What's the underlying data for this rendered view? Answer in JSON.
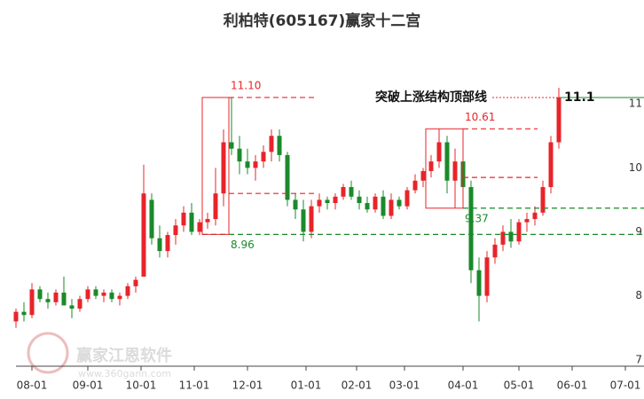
{
  "chart_data": {
    "type": "candlestick",
    "title": "利柏特(605167)赢家十二宫",
    "watermark": [
      "赢家江恩软件",
      "www.360gann.com"
    ],
    "up_color": "#e8242a",
    "down_color": "#1a8a2a",
    "xlim": [
      0,
      236
    ],
    "ylim": [
      6.9,
      12.0
    ],
    "xticks": [
      {
        "value": 6,
        "label": "08-01"
      },
      {
        "value": 27,
        "label": "09-01"
      },
      {
        "value": 47,
        "label": "10-01"
      },
      {
        "value": 67,
        "label": "11-01"
      },
      {
        "value": 87,
        "label": "12-01"
      },
      {
        "value": 109,
        "label": "01-01"
      },
      {
        "value": 128,
        "label": "02-01"
      },
      {
        "value": 146,
        "label": "03-01"
      },
      {
        "value": 168,
        "label": "04-01"
      },
      {
        "value": 189,
        "label": "05-01"
      },
      {
        "value": 209,
        "label": "06-01"
      },
      {
        "value": 229,
        "label": "07-01"
      }
    ],
    "yticks": [
      7,
      8,
      9,
      10,
      11
    ],
    "x": [
      0,
      3,
      6,
      9,
      12,
      15,
      18,
      21,
      24,
      27,
      30,
      33,
      36,
      39,
      42,
      45,
      48,
      51,
      54,
      57,
      60,
      63,
      66,
      69,
      72,
      75,
      78,
      81,
      84,
      87,
      90,
      93,
      96,
      99,
      102,
      105,
      108,
      111,
      114,
      117,
      120,
      123,
      126,
      129,
      132,
      135,
      138,
      141,
      144,
      147,
      150,
      153,
      156,
      159,
      162,
      165,
      168,
      171,
      174,
      177,
      180,
      183,
      186,
      189,
      192,
      195,
      198,
      201,
      204
    ],
    "open": [
      7.6,
      7.75,
      7.7,
      8.1,
      7.95,
      7.9,
      8.05,
      7.85,
      7.8,
      7.95,
      8.1,
      8.0,
      8.05,
      7.95,
      8.0,
      8.15,
      8.3,
      9.5,
      8.9,
      8.7,
      8.95,
      9.1,
      9.3,
      9.0,
      9.15,
      9.2,
      9.6,
      10.4,
      10.3,
      10.1,
      10.0,
      10.1,
      10.25,
      10.5,
      10.2,
      9.5,
      9.35,
      9.0,
      9.4,
      9.5,
      9.45,
      9.55,
      9.7,
      9.55,
      9.45,
      9.35,
      9.55,
      9.25,
      9.5,
      9.4,
      9.65,
      9.8,
      9.95,
      10.1,
      10.4,
      9.8,
      10.1,
      9.7,
      8.4,
      8.0,
      8.6,
      8.8,
      9.0,
      8.85,
      9.15,
      9.2,
      9.3,
      9.7,
      10.4
    ],
    "high": [
      7.8,
      7.9,
      8.2,
      8.15,
      8.05,
      8.1,
      8.3,
      7.95,
      8.0,
      8.15,
      8.15,
      8.1,
      8.1,
      8.05,
      8.2,
      8.3,
      10.05,
      9.6,
      9.1,
      9.0,
      9.2,
      9.4,
      9.45,
      9.2,
      9.3,
      10.0,
      10.6,
      11.1,
      10.5,
      10.3,
      10.2,
      10.35,
      10.6,
      10.6,
      10.25,
      9.6,
      9.5,
      9.5,
      9.6,
      9.55,
      9.6,
      9.75,
      9.8,
      9.65,
      9.55,
      9.6,
      9.65,
      9.6,
      9.55,
      9.7,
      9.9,
      10.0,
      10.2,
      10.61,
      10.5,
      10.3,
      10.2,
      9.8,
      8.6,
      8.7,
      8.9,
      9.1,
      9.2,
      9.2,
      9.3,
      9.4,
      9.8,
      10.5,
      11.25
    ],
    "low": [
      7.5,
      7.6,
      7.65,
      7.9,
      7.8,
      7.85,
      7.9,
      7.65,
      7.75,
      7.9,
      7.95,
      7.9,
      7.9,
      7.85,
      7.95,
      8.05,
      8.3,
      8.8,
      8.6,
      8.6,
      8.8,
      9.0,
      8.95,
      8.95,
      9.05,
      9.1,
      9.4,
      10.2,
      9.9,
      9.9,
      9.8,
      10.0,
      10.1,
      10.1,
      9.4,
      9.2,
      8.85,
      8.9,
      9.3,
      9.35,
      9.35,
      9.5,
      9.5,
      9.35,
      9.3,
      9.3,
      9.2,
      9.2,
      9.35,
      9.35,
      9.6,
      9.7,
      9.85,
      10.0,
      9.6,
      9.37,
      9.6,
      8.2,
      7.6,
      7.9,
      8.5,
      8.7,
      8.75,
      8.8,
      9.0,
      9.1,
      9.25,
      9.6,
      10.3
    ],
    "close": [
      7.75,
      7.7,
      8.1,
      7.95,
      7.9,
      8.05,
      7.85,
      7.8,
      7.95,
      8.1,
      8.0,
      8.05,
      7.95,
      8.0,
      8.15,
      8.25,
      9.6,
      8.9,
      8.7,
      8.95,
      9.1,
      9.3,
      9.0,
      9.15,
      9.2,
      9.6,
      10.4,
      10.3,
      10.1,
      10.0,
      10.1,
      10.25,
      10.5,
      10.2,
      9.5,
      9.35,
      9.0,
      9.4,
      9.5,
      9.45,
      9.55,
      9.7,
      9.55,
      9.45,
      9.35,
      9.55,
      9.25,
      9.5,
      9.4,
      9.65,
      9.8,
      9.95,
      10.1,
      10.4,
      9.8,
      10.1,
      9.7,
      8.4,
      8.0,
      8.6,
      8.8,
      9.0,
      8.85,
      9.15,
      9.2,
      9.3,
      9.7,
      10.4,
      11.1
    ],
    "boxes": [
      {
        "x": [
          70,
          80
        ],
        "top": {
          "value": 11.1,
          "label": "11.10"
        },
        "bottom": {
          "value": 8.96,
          "label": "8.96"
        }
      },
      {
        "x": [
          154,
          168
        ],
        "top": {
          "value": 10.61,
          "label": "10.61"
        },
        "bottom": {
          "value": 9.37,
          "label": "9.37"
        }
      }
    ],
    "levels": [
      {
        "value": 11.1,
        "x": [
          80,
          113
        ],
        "color": "#e8242a"
      },
      {
        "value": 9.6,
        "x": [
          80,
          112
        ],
        "color": "#e8242a"
      },
      {
        "value": 8.96,
        "x": [
          70,
          236
        ],
        "color": "#1a8a2a"
      },
      {
        "value": 10.61,
        "x": [
          168,
          196
        ],
        "color": "#e8242a"
      },
      {
        "value": 9.85,
        "x": [
          168,
          196
        ],
        "color": "#e8242a"
      },
      {
        "value": 9.37,
        "x": [
          168,
          236
        ],
        "color": "#1a8a2a"
      }
    ],
    "breakout": {
      "text": "突破上涨结构顶部线",
      "value": 11.1,
      "label": "11.1",
      "x": [
        179,
        204,
        236
      ]
    }
  }
}
